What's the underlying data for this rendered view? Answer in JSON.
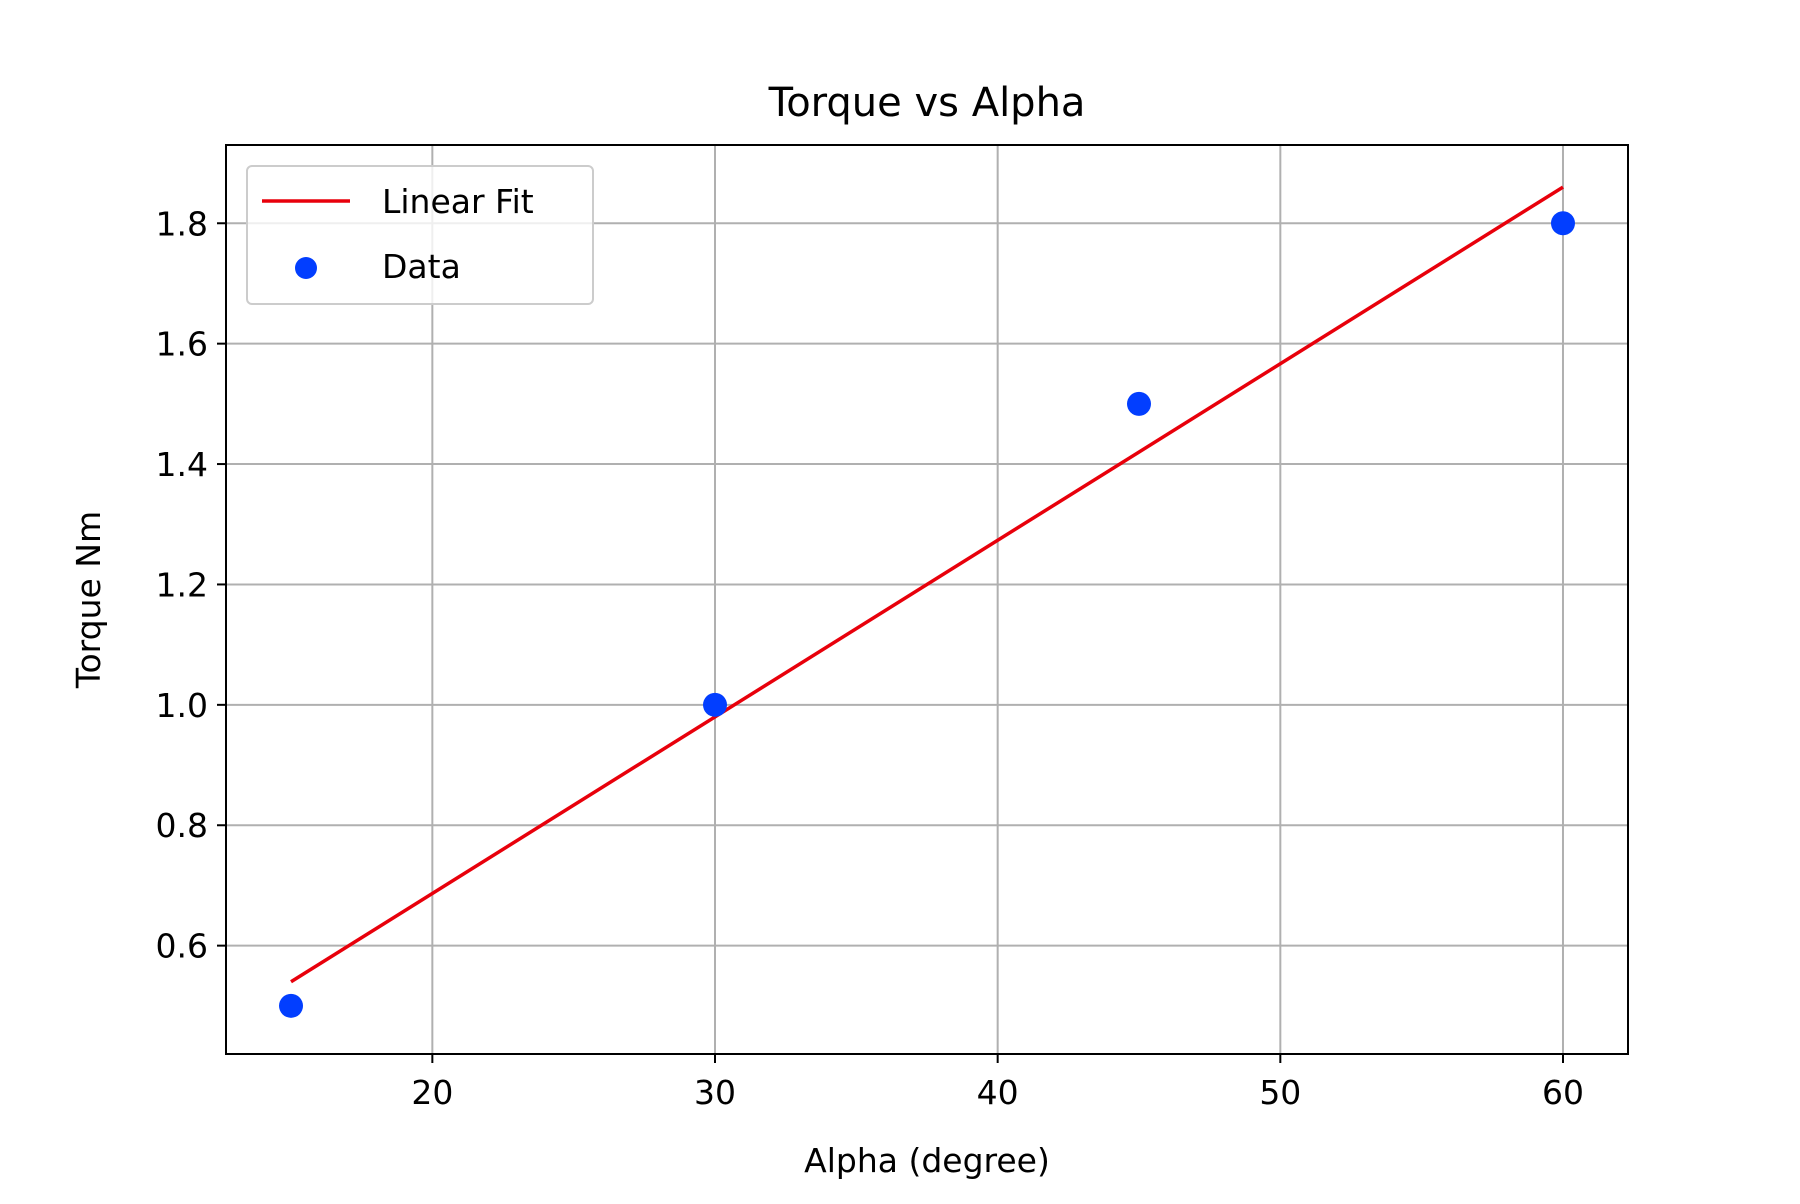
{
  "chart_data": {
    "type": "scatter",
    "title": "Torque vs Alpha",
    "xlabel": "Alpha (degree)",
    "ylabel": "Torque Nm",
    "xlim": [
      12.7,
      62.3
    ],
    "ylim": [
      0.42,
      1.93
    ],
    "xticks": [
      20,
      30,
      40,
      50,
      60
    ],
    "xtick_labels": [
      "20",
      "30",
      "40",
      "50",
      "60"
    ],
    "yticks": [
      0.6,
      0.8,
      1.0,
      1.2,
      1.4,
      1.6,
      1.8
    ],
    "ytick_labels": [
      "0.6",
      "0.8",
      "1.0",
      "1.2",
      "1.4",
      "1.6",
      "1.8"
    ],
    "grid": true,
    "legend_position": "top-left",
    "series": [
      {
        "name": "Linear Fit",
        "kind": "line",
        "color": "#e8000b",
        "x": [
          15,
          60
        ],
        "y": [
          0.54,
          1.86
        ]
      },
      {
        "name": "Data",
        "kind": "scatter",
        "color": "#023eff",
        "x": [
          15,
          30,
          45,
          60
        ],
        "y": [
          0.5,
          1.0,
          1.5,
          1.8
        ]
      }
    ]
  }
}
